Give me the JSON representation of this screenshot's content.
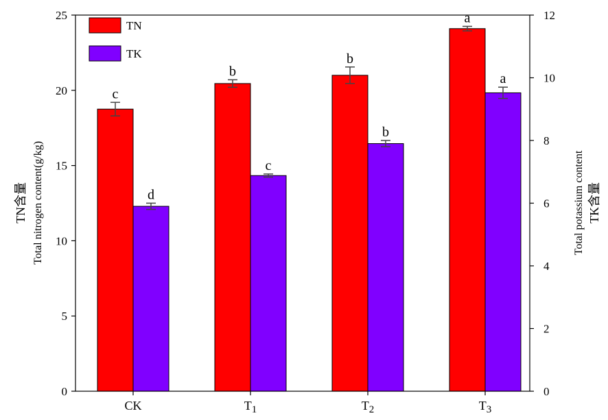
{
  "chart_data": {
    "type": "bar",
    "categories": [
      "CK",
      "T1",
      "T2",
      "T3"
    ],
    "series": [
      {
        "name": "TN",
        "axis": "left",
        "color": "#ff0000",
        "values": [
          18.75,
          20.45,
          21.0,
          24.1
        ],
        "errors": [
          0.45,
          0.25,
          0.55,
          0.15
        ],
        "letters": [
          "c",
          "b",
          "b",
          "a"
        ]
      },
      {
        "name": "TK",
        "axis": "right",
        "color": "#8000ff",
        "values": [
          5.9,
          6.88,
          7.9,
          9.52
        ],
        "errors": [
          0.1,
          0.05,
          0.1,
          0.18
        ],
        "letters": [
          "d",
          "c",
          "b",
          "a"
        ]
      }
    ],
    "y_left": {
      "label_line1": "TN含量",
      "label_line2": "Total nitrogen content(g/kg)",
      "lim": [
        0,
        25
      ],
      "ticks": [
        0,
        5,
        10,
        15,
        20,
        25
      ]
    },
    "y_right": {
      "label_line1": "Total potassium content",
      "label_line2": "TK含量",
      "lim": [
        0,
        12
      ],
      "ticks": [
        0,
        2,
        4,
        6,
        8,
        10,
        12
      ]
    },
    "legend_position": "top-left",
    "grid": false
  }
}
